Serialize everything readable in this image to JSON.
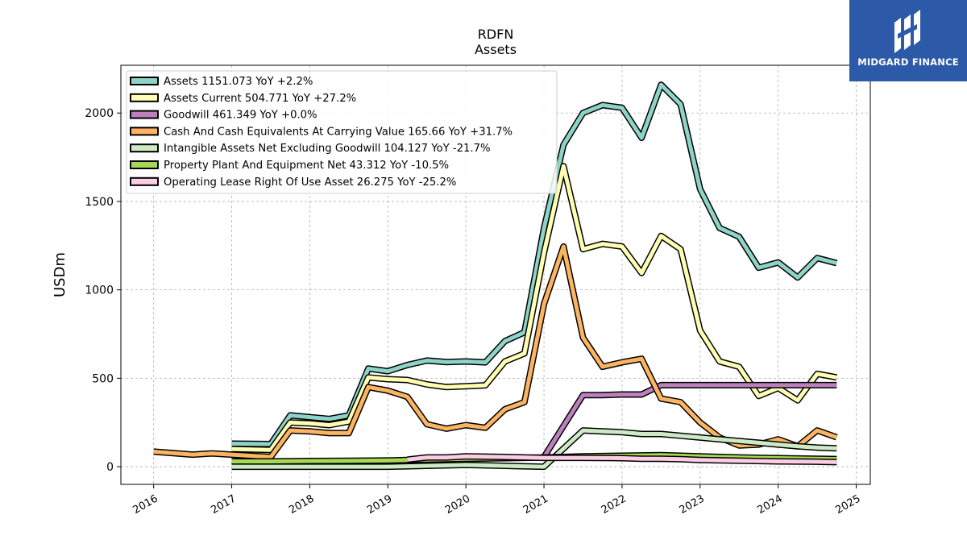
{
  "chart_data": {
    "type": "line",
    "title": "RDFN",
    "subtitle": "Assets",
    "ylabel": "USDm",
    "xlabel": "",
    "xlim": [
      2015.58,
      2025.18
    ],
    "ylim": [
      -100,
      2270
    ],
    "x_ticks": [
      2016,
      2017,
      2018,
      2019,
      2020,
      2021,
      2022,
      2023,
      2024,
      2025
    ],
    "y_ticks": [
      0,
      500,
      1000,
      1500,
      2000
    ],
    "grid": true,
    "legend_position": "top-left",
    "series": [
      {
        "name": "Assets  1151.073 YoY +2.2%",
        "color": "#8dd3c7",
        "points": [
          [
            2017.0,
            130
          ],
          [
            2017.5,
            128
          ],
          [
            2017.75,
            290
          ],
          [
            2018.0,
            280
          ],
          [
            2018.25,
            270
          ],
          [
            2018.5,
            290
          ],
          [
            2018.75,
            555
          ],
          [
            2019.0,
            540
          ],
          [
            2019.25,
            575
          ],
          [
            2019.5,
            600
          ],
          [
            2019.75,
            592
          ],
          [
            2020.0,
            595
          ],
          [
            2020.25,
            590
          ],
          [
            2020.5,
            710
          ],
          [
            2020.75,
            760
          ],
          [
            2021.0,
            1350
          ],
          [
            2021.25,
            1820
          ],
          [
            2021.5,
            2000
          ],
          [
            2021.75,
            2045
          ],
          [
            2022.0,
            2030
          ],
          [
            2022.25,
            1860
          ],
          [
            2022.5,
            2160
          ],
          [
            2022.75,
            2050
          ],
          [
            2023.0,
            1570
          ],
          [
            2023.25,
            1350
          ],
          [
            2023.5,
            1300
          ],
          [
            2023.75,
            1125
          ],
          [
            2024.0,
            1155
          ],
          [
            2024.25,
            1070
          ],
          [
            2024.5,
            1180
          ],
          [
            2024.75,
            1151
          ]
        ]
      },
      {
        "name": "Assets Current  504.771 YoY +27.2%",
        "color": "#ffffb3",
        "points": [
          [
            2017.0,
            100
          ],
          [
            2017.5,
            95
          ],
          [
            2017.75,
            250
          ],
          [
            2018.0,
            245
          ],
          [
            2018.25,
            235
          ],
          [
            2018.5,
            255
          ],
          [
            2018.75,
            505
          ],
          [
            2019.0,
            495
          ],
          [
            2019.25,
            490
          ],
          [
            2019.5,
            465
          ],
          [
            2019.75,
            450
          ],
          [
            2020.0,
            455
          ],
          [
            2020.25,
            460
          ],
          [
            2020.5,
            595
          ],
          [
            2020.75,
            640
          ],
          [
            2021.0,
            1210
          ],
          [
            2021.25,
            1700
          ],
          [
            2021.5,
            1230
          ],
          [
            2021.75,
            1260
          ],
          [
            2022.0,
            1245
          ],
          [
            2022.25,
            1095
          ],
          [
            2022.5,
            1305
          ],
          [
            2022.75,
            1230
          ],
          [
            2023.0,
            770
          ],
          [
            2023.25,
            595
          ],
          [
            2023.5,
            565
          ],
          [
            2023.75,
            400
          ],
          [
            2024.0,
            445
          ],
          [
            2024.25,
            375
          ],
          [
            2024.5,
            525
          ],
          [
            2024.75,
            505
          ]
        ]
      },
      {
        "name": "Goodwill  461.349 YoY +0.0%",
        "color": "#bc80bd",
        "points": [
          [
            2021.0,
            55
          ],
          [
            2021.5,
            405
          ],
          [
            2021.75,
            405
          ],
          [
            2022.0,
            408
          ],
          [
            2022.25,
            408
          ],
          [
            2022.5,
            461
          ],
          [
            2022.75,
            461
          ],
          [
            2023.0,
            461
          ],
          [
            2023.25,
            461
          ],
          [
            2023.5,
            461
          ],
          [
            2023.75,
            461
          ],
          [
            2024.0,
            461
          ],
          [
            2024.25,
            461
          ],
          [
            2024.5,
            461
          ],
          [
            2024.75,
            461
          ]
        ]
      },
      {
        "name": "Cash And Cash Equivalents At Carrying Value  165.66 YoY +31.7%",
        "color": "#fdb462",
        "points": [
          [
            2016.0,
            85
          ],
          [
            2016.5,
            68
          ],
          [
            2016.75,
            75
          ],
          [
            2017.0,
            68
          ],
          [
            2017.5,
            55
          ],
          [
            2017.75,
            205
          ],
          [
            2018.0,
            200
          ],
          [
            2018.25,
            190
          ],
          [
            2018.5,
            190
          ],
          [
            2018.75,
            450
          ],
          [
            2019.0,
            430
          ],
          [
            2019.25,
            395
          ],
          [
            2019.5,
            240
          ],
          [
            2019.75,
            215
          ],
          [
            2020.0,
            235
          ],
          [
            2020.25,
            220
          ],
          [
            2020.5,
            325
          ],
          [
            2020.75,
            365
          ],
          [
            2021.0,
            920
          ],
          [
            2021.25,
            1245
          ],
          [
            2021.5,
            730
          ],
          [
            2021.75,
            565
          ],
          [
            2022.0,
            590
          ],
          [
            2022.25,
            610
          ],
          [
            2022.5,
            385
          ],
          [
            2022.75,
            365
          ],
          [
            2023.0,
            250
          ],
          [
            2023.25,
            165
          ],
          [
            2023.5,
            120
          ],
          [
            2023.75,
            125
          ],
          [
            2024.0,
            155
          ],
          [
            2024.25,
            115
          ],
          [
            2024.5,
            205
          ],
          [
            2024.75,
            166
          ]
        ]
      },
      {
        "name": "Intangible Assets Net Excluding Goodwill  104.127 YoY -21.7%",
        "color": "#ccebc5",
        "points": [
          [
            2017.0,
            0
          ],
          [
            2019.0,
            0
          ],
          [
            2020.0,
            10
          ],
          [
            2020.5,
            5
          ],
          [
            2021.0,
            0
          ],
          [
            2021.5,
            205
          ],
          [
            2021.75,
            200
          ],
          [
            2022.0,
            195
          ],
          [
            2022.25,
            185
          ],
          [
            2022.5,
            185
          ],
          [
            2022.75,
            175
          ],
          [
            2023.0,
            165
          ],
          [
            2023.25,
            155
          ],
          [
            2023.5,
            145
          ],
          [
            2023.75,
            135
          ],
          [
            2024.0,
            125
          ],
          [
            2024.25,
            115
          ],
          [
            2024.5,
            108
          ],
          [
            2024.75,
            104
          ]
        ]
      },
      {
        "name": "Property Plant And Equipment Net  43.312 YoY -10.5%",
        "color": "#a6d854",
        "points": [
          [
            2017.0,
            30
          ],
          [
            2017.5,
            30
          ],
          [
            2018.0,
            32
          ],
          [
            2018.5,
            33
          ],
          [
            2019.0,
            35
          ],
          [
            2019.25,
            38
          ],
          [
            2019.5,
            40
          ],
          [
            2020.0,
            45
          ],
          [
            2020.5,
            48
          ],
          [
            2021.0,
            52
          ],
          [
            2021.5,
            58
          ],
          [
            2022.0,
            62
          ],
          [
            2022.5,
            65
          ],
          [
            2023.0,
            58
          ],
          [
            2023.5,
            52
          ],
          [
            2024.0,
            48
          ],
          [
            2024.5,
            45
          ],
          [
            2024.75,
            43
          ]
        ]
      },
      {
        "name": "Operating Lease Right Of Use Asset  26.275 YoY -25.2%",
        "color": "#fccde5",
        "points": [
          [
            2019.25,
            40
          ],
          [
            2019.5,
            52
          ],
          [
            2019.75,
            52
          ],
          [
            2020.0,
            58
          ],
          [
            2020.5,
            55
          ],
          [
            2021.0,
            50
          ],
          [
            2021.5,
            50
          ],
          [
            2022.0,
            48
          ],
          [
            2022.25,
            45
          ],
          [
            2022.5,
            45
          ],
          [
            2022.75,
            42
          ],
          [
            2023.0,
            38
          ],
          [
            2023.5,
            34
          ],
          [
            2024.0,
            30
          ],
          [
            2024.5,
            28
          ],
          [
            2024.75,
            26
          ]
        ]
      }
    ]
  },
  "logo": {
    "text": "MIDGARD FINANCE",
    "color": "#2c5aa8"
  }
}
